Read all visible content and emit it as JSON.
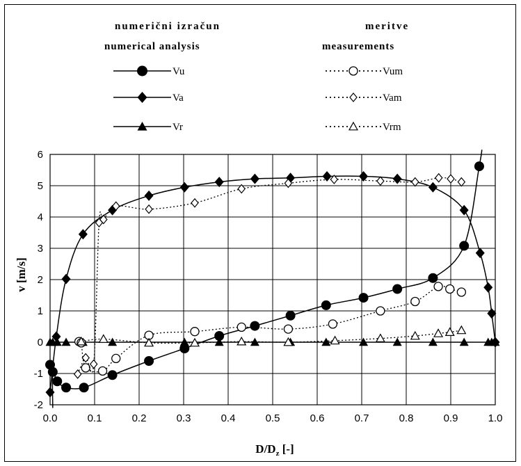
{
  "chart_data": {
    "type": "scatter",
    "header": {
      "left_line1": "numerični izračun",
      "left_line2": "numerical analysis",
      "right_line1": "meritve",
      "right_line2": "measurements"
    },
    "xlabel": "D/D",
    "xlabel_sub": "z",
    "xlabel_unit": " [-]",
    "ylabel": "v  [m/s]",
    "xlim": [
      0.0,
      1.0
    ],
    "ylim": [
      -2,
      6
    ],
    "xticks": [
      "0.0",
      "0.1",
      "0.2",
      "0.3",
      "0.4",
      "0.5",
      "0.6",
      "0.7",
      "0.8",
      "0.9",
      "1.0"
    ],
    "yticks": [
      "-2",
      "-1",
      "0",
      "1",
      "2",
      "3",
      "4",
      "5",
      "6"
    ],
    "grid": true,
    "series": [
      {
        "name": "Vu",
        "group": "numerical",
        "line": "solid",
        "marker": "circle-filled",
        "x": [
          0.0,
          0.006,
          0.016,
          0.036,
          0.076,
          0.14,
          0.222,
          0.302,
          0.38,
          0.46,
          0.54,
          0.62,
          0.704,
          0.78,
          0.86,
          0.93,
          0.964
        ],
        "y": [
          -0.72,
          -0.95,
          -1.25,
          -1.45,
          -1.45,
          -1.05,
          -0.6,
          -0.2,
          0.2,
          0.52,
          0.85,
          1.18,
          1.42,
          1.7,
          2.05,
          3.08,
          5.62
        ],
        "curve_extra": {
          "x_start": 0.006,
          "y_start": -2.1,
          "x_end": 0.97,
          "y_end": 6.15
        }
      },
      {
        "name": "Va",
        "group": "numerical",
        "line": "solid",
        "marker": "diamond-filled",
        "x": [
          0.0,
          0.014,
          0.036,
          0.074,
          0.14,
          0.222,
          0.302,
          0.38,
          0.46,
          0.54,
          0.622,
          0.704,
          0.78,
          0.86,
          0.93,
          0.966,
          0.984,
          0.992,
          1.0
        ],
        "y": [
          -1.6,
          0.18,
          2.02,
          3.45,
          4.22,
          4.68,
          4.95,
          5.12,
          5.22,
          5.25,
          5.3,
          5.3,
          5.22,
          4.95,
          4.22,
          2.85,
          1.75,
          0.92,
          0.0
        ]
      },
      {
        "name": "Vr",
        "group": "numerical",
        "line": "solid",
        "marker": "triangle-filled",
        "x": [
          0.0,
          0.006,
          0.016,
          0.036,
          0.074,
          0.14,
          0.222,
          0.302,
          0.38,
          0.46,
          0.54,
          0.62,
          0.704,
          0.78,
          0.86,
          0.93,
          0.984,
          0.992,
          1.0
        ],
        "y": [
          0,
          0,
          0,
          0,
          0,
          0,
          0,
          0,
          0,
          0,
          0,
          0,
          0,
          0,
          0,
          0,
          0,
          0,
          0
        ]
      },
      {
        "name": "Vum",
        "group": "measurements",
        "line": "dotted",
        "marker": "circle-open",
        "x": [
          0.065,
          0.07,
          0.08,
          0.118,
          0.148,
          0.222,
          0.325,
          0.43,
          0.535,
          0.635,
          0.742,
          0.82,
          0.872,
          0.898,
          0.924
        ],
        "y": [
          0.02,
          -0.02,
          -0.82,
          -0.92,
          -0.52,
          0.22,
          0.34,
          0.48,
          0.42,
          0.58,
          1.0,
          1.3,
          1.78,
          1.7,
          1.6
        ]
      },
      {
        "name": "Vam",
        "group": "measurements",
        "line": "dotted",
        "marker": "diamond-open",
        "x": [
          0.062,
          0.08,
          0.098,
          0.11,
          0.12,
          0.148,
          0.222,
          0.325,
          0.43,
          0.535,
          0.638,
          0.742,
          0.82,
          0.873,
          0.9,
          0.924
        ],
        "y": [
          -1.02,
          -0.5,
          -0.7,
          3.82,
          3.92,
          4.35,
          4.25,
          4.45,
          4.9,
          5.08,
          5.2,
          5.15,
          5.12,
          5.25,
          5.22,
          5.12
        ]
      },
      {
        "name": "Vrm",
        "group": "measurements",
        "line": "dotted",
        "marker": "triangle-open",
        "x": [
          0.07,
          0.12,
          0.222,
          0.325,
          0.43,
          0.535,
          0.64,
          0.742,
          0.82,
          0.872,
          0.898,
          0.924
        ],
        "y": [
          0.02,
          0.1,
          -0.02,
          -0.02,
          0.02,
          0.0,
          0.05,
          0.12,
          0.2,
          0.28,
          0.32,
          0.38
        ]
      }
    ]
  }
}
